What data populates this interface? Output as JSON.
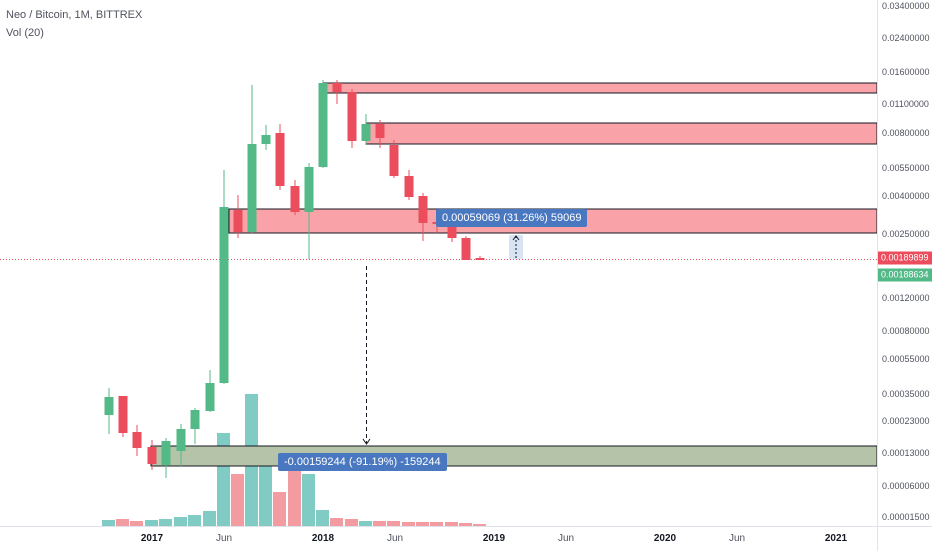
{
  "legend": {
    "symbol": "Neo / Bitcoin, 1M, BITTREX",
    "volume": "Vol (20)"
  },
  "price_axis": {
    "labels": [
      "0.03400000",
      "0.02400000",
      "0.01600000",
      "0.01100000",
      "0.00800000",
      "0.00550000",
      "0.00400000",
      "0.00250000",
      "0.00120000",
      "0.00080000",
      "0.00055000",
      "0.00035000",
      "0.00023000",
      "0.00013000",
      "0.00006000",
      "0.00001500"
    ],
    "last_price": "0.00189899",
    "green_badge": "0.00188634"
  },
  "time_axis": {
    "labels": [
      {
        "text": "2017",
        "bold": true
      },
      {
        "text": "Jun",
        "bold": false
      },
      {
        "text": "2018",
        "bold": true
      },
      {
        "text": "Jun",
        "bold": false
      },
      {
        "text": "2019",
        "bold": true
      },
      {
        "text": "Jun",
        "bold": false
      },
      {
        "text": "2020",
        "bold": true
      },
      {
        "text": "Jun",
        "bold": false
      },
      {
        "text": "2021",
        "bold": true
      }
    ]
  },
  "measurements": {
    "upper": "0.00059069 (31.26%) 59069",
    "lower": "-0.00159244 (-91.19%) -159244"
  },
  "colors": {
    "up": "#53b987",
    "down": "#eb4d5c",
    "vol_up": "#80cbc4",
    "vol_down": "#f29ba0",
    "zone_red": "#f9a3a8",
    "zone_green": "#b5c4a8",
    "measure_blue": "#4a78c0",
    "last_price_line": "#eb4d5c"
  }
}
